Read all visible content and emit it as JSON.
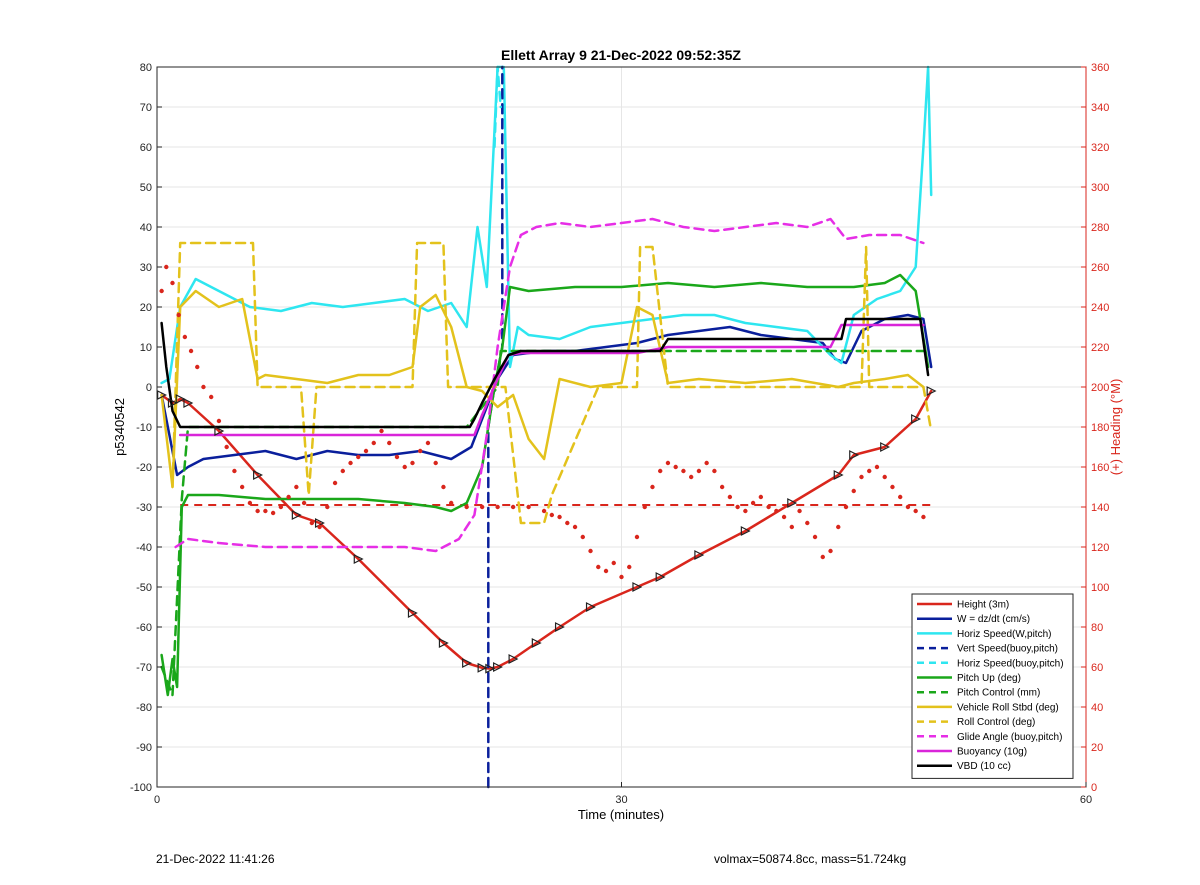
{
  "footer": {
    "timestamp": "21-Dec-2022 11:41:26",
    "info": "volmax=50874.8cc, mass=51.724kg"
  },
  "chart_data": {
    "type": "line",
    "title": "Ellett Array 9 21-Dec-2022 09:52:35Z",
    "xlabel": "Time (minutes)",
    "ylabel": "p5340542",
    "y2label": "(+) Heading (°M)",
    "xlim": [
      0,
      60
    ],
    "ylim": [
      -100,
      80
    ],
    "y2lim": [
      0,
      360
    ],
    "xticks": [
      0,
      30,
      60
    ],
    "yticks": [
      -100,
      -90,
      -80,
      -70,
      -60,
      -50,
      -40,
      -30,
      -20,
      -10,
      0,
      10,
      20,
      30,
      40,
      50,
      60,
      70,
      80
    ],
    "y2ticks": [
      0,
      20,
      40,
      60,
      80,
      100,
      120,
      140,
      160,
      180,
      200,
      220,
      240,
      260,
      280,
      300,
      320,
      340,
      360
    ],
    "grid": true,
    "legend_position": "bottom-right",
    "colors": {
      "height": "#d9261c",
      "w": "#0a1f9c",
      "horiz": "#2ee6f0",
      "pitch": "#1aa71a",
      "roll": "#e3c21c",
      "glide": "#e62ee6",
      "buoy": "#d925d9",
      "vbd": "#000000",
      "heading": "#d9261c"
    },
    "series": [
      {
        "name": "Height (3m)",
        "key": "height",
        "style": "solid",
        "x": [
          0.3,
          1.0,
          1.5,
          2.0,
          4.0,
          6.5,
          9.0,
          10.5,
          13.0,
          16.5,
          18.5,
          20.0,
          21.0,
          21.5,
          22.0,
          23.0,
          24.5,
          26.0,
          28.0,
          31.0,
          32.5,
          35.0,
          38.0,
          41.0,
          44.0,
          45.0,
          47.0,
          49.0,
          50.0
        ],
        "y": [
          -2,
          -4,
          -3,
          -4,
          -11,
          -22,
          -32,
          -34,
          -43,
          -56.5,
          -64,
          -69,
          -70.2,
          -70.4,
          -70,
          -68,
          -64,
          -60,
          -55,
          -50,
          -47.5,
          -42,
          -36,
          -29,
          -22,
          -17,
          -15,
          -8,
          -1
        ]
      },
      {
        "name": "W = dz/dt (cm/s)",
        "key": "w",
        "style": "solid",
        "x": [
          0.3,
          0.8,
          1.3,
          2.0,
          3.0,
          5.0,
          7.0,
          9.0,
          11.0,
          13.0,
          15.0,
          17.0,
          19.0,
          20.3,
          21.0,
          22.0,
          23.0,
          25.0,
          27.0,
          29.0,
          31.0,
          33.0,
          35.0,
          37.0,
          39.0,
          41.0,
          43.0,
          43.8,
          44.5,
          45.5,
          47.0,
          48.5,
          49.5,
          50.0
        ],
        "y": [
          -2,
          -12,
          -22,
          -20,
          -18,
          -17,
          -16,
          -18,
          -16,
          -17,
          -17,
          -16,
          -18,
          -15,
          -8,
          2,
          8,
          9,
          9,
          10,
          11,
          13,
          14,
          15,
          13,
          12,
          11,
          7,
          6,
          14,
          17,
          18,
          17,
          5
        ]
      },
      {
        "name": "Horiz Speed(W,pitch)",
        "key": "horiz",
        "style": "solid",
        "x": [
          0.3,
          0.8,
          1.5,
          2.5,
          4.0,
          6.0,
          8.0,
          10.0,
          12.0,
          14.0,
          16.0,
          17.5,
          19.0,
          20.0,
          20.7,
          21.3,
          22.0,
          22.4,
          22.8,
          23.3,
          24.0,
          26.0,
          28.0,
          30.0,
          32.0,
          34.0,
          36.0,
          38.0,
          40.0,
          42.0,
          43.5,
          44.2,
          45.0,
          46.5,
          48.0,
          49.0,
          49.5,
          49.8,
          50.0
        ],
        "y": [
          1,
          2,
          20,
          27,
          24,
          20,
          19,
          21,
          20,
          21,
          22,
          19,
          21,
          15,
          40,
          25,
          80,
          80,
          5,
          15,
          13,
          12,
          15,
          16,
          17,
          18,
          18,
          16,
          15,
          14,
          8,
          6,
          18,
          22,
          24,
          30,
          60,
          80,
          48
        ]
      },
      {
        "name": "Vert Speed(buoy,pitch)",
        "key": "w",
        "style": "dashed",
        "x": [
          21.4,
          21.4,
          21.8,
          22.3,
          22.3
        ],
        "y": [
          -100,
          -10,
          0,
          10,
          80
        ]
      },
      {
        "name": "Horiz Speed(buoy,pitch)",
        "key": "horiz",
        "style": "dashed",
        "x": [
          21.8,
          22.0,
          22.2
        ],
        "y": [
          60,
          80,
          70
        ]
      },
      {
        "name": "Pitch Up (deg)",
        "key": "pitch",
        "style": "solid",
        "x": [
          0.3,
          0.7,
          1.0,
          1.3,
          1.6,
          2.0,
          4.0,
          7.0,
          10.0,
          13.0,
          16.0,
          18.0,
          19.0,
          20.0,
          21.0,
          21.8,
          22.3,
          22.8,
          24.0,
          27.0,
          30.0,
          33.0,
          36.0,
          39.0,
          42.0,
          45.0,
          47.0,
          48.0,
          49.0,
          49.8
        ],
        "y": [
          -67,
          -77,
          -68,
          -75,
          -30,
          -27,
          -27,
          -28,
          -28,
          -28,
          -29,
          -30,
          -31,
          -29,
          -20,
          0,
          10,
          25,
          24,
          25,
          25,
          26,
          25,
          26,
          25,
          25,
          26,
          28,
          24,
          5
        ]
      },
      {
        "name": "Pitch Control (mm)",
        "key": "pitch",
        "style": "dashed",
        "x": [
          0.3,
          1.0,
          1.6,
          2.0,
          20.0,
          22.0,
          22.2,
          32.5,
          33.0,
          45.0,
          45.5,
          49.5
        ],
        "y": [
          -70,
          -77,
          -28,
          -10,
          -10,
          0,
          9,
          9,
          9,
          9,
          9,
          9
        ]
      },
      {
        "name": "Vehicle Roll Stbd (deg)",
        "key": "roll",
        "style": "solid",
        "x": [
          0.3,
          1.0,
          1.5,
          2.5,
          4.0,
          5.5,
          6.5,
          7.0,
          9.0,
          11.0,
          13.0,
          15.0,
          16.5,
          17.0,
          18.0,
          19.0,
          20.0,
          21.0,
          22.0,
          23.0,
          24.0,
          25.0,
          26.0,
          28.0,
          30.0,
          31.0,
          32.0,
          33.0,
          35.0,
          38.0,
          41.0,
          44.0,
          45.0,
          47.0,
          48.5,
          49.5
        ],
        "y": [
          -2,
          -25,
          20,
          24,
          20,
          22,
          2,
          3,
          2,
          1,
          3,
          3,
          5,
          20,
          23,
          15,
          0,
          -1,
          -5,
          -2,
          -13,
          -18,
          2,
          0,
          1,
          20,
          18,
          1,
          2,
          1,
          2,
          0,
          1,
          2,
          3,
          0
        ]
      },
      {
        "name": "Roll Control (deg)",
        "key": "roll",
        "style": "dashed",
        "x": [
          1.0,
          1.5,
          2.0,
          3.3,
          6.2,
          6.5,
          9.3,
          9.8,
          10.3,
          15.0,
          16.5,
          16.8,
          18.5,
          18.8,
          20.0,
          21.0,
          22.5,
          23.5,
          25.0,
          25.5,
          28.5,
          31.0,
          31.2,
          32.0,
          33.0,
          45.5,
          45.8,
          46.0,
          49.5,
          50.0
        ],
        "y": [
          -25,
          36,
          36,
          36,
          36,
          0,
          0,
          -27,
          0,
          0,
          0,
          36,
          36,
          0,
          0,
          0,
          0,
          -34,
          -34,
          -27,
          0,
          0,
          35,
          35,
          0,
          0,
          35,
          0,
          0,
          -11
        ]
      },
      {
        "name": "Glide Angle (buoy,pitch)",
        "key": "glide",
        "style": "dashed",
        "x": [
          1.2,
          2.0,
          4.0,
          7.0,
          10.0,
          13.0,
          16.0,
          18.0,
          19.5,
          20.5,
          21.3,
          22.0,
          22.8,
          23.5,
          24.5,
          26.0,
          28.0,
          30.0,
          32.0,
          34.0,
          36.0,
          38.0,
          40.0,
          42.0,
          43.5,
          44.5,
          46.0,
          48.0,
          49.5
        ],
        "y": [
          -40,
          -38,
          -39,
          -40,
          -40,
          -40,
          -40,
          -41,
          -38,
          -32,
          -12,
          10,
          30,
          38,
          40,
          41,
          40,
          41,
          42,
          40,
          39,
          40,
          41,
          40,
          42,
          37,
          38,
          38,
          36
        ]
      },
      {
        "name": "Buoyancy (10g)",
        "key": "buoy",
        "style": "solid",
        "x": [
          1.5,
          20.5,
          21.0,
          22.0,
          22.7,
          23.5,
          31.0,
          33.0,
          43.5,
          44.2,
          49.5
        ],
        "y": [
          -12,
          -12,
          -7,
          2,
          8,
          8.5,
          8.5,
          10,
          10,
          15.5,
          15.5
        ]
      },
      {
        "name": "VBD (10 cc)",
        "key": "vbd",
        "style": "solid",
        "x": [
          0.3,
          0.6,
          1.0,
          1.5,
          20.2,
          20.5,
          21.0,
          21.8,
          22.7,
          23.5,
          32.5,
          33.0,
          44.2,
          44.5,
          49.3,
          49.8
        ],
        "y": [
          16,
          5,
          -6,
          -10,
          -10,
          -8,
          -4,
          2,
          8,
          9,
          9,
          12,
          12,
          17,
          17,
          3
        ]
      }
    ],
    "heading_series": {
      "name": "Heading",
      "axis": "right",
      "x": [
        0.3,
        0.6,
        1.0,
        1.4,
        1.8,
        2.2,
        2.6,
        3.0,
        3.5,
        4.0,
        4.5,
        5.0,
        5.5,
        6.0,
        6.5,
        7.0,
        7.5,
        8.0,
        8.5,
        9.0,
        9.5,
        10.0,
        10.5,
        11.0,
        11.5,
        12.0,
        12.5,
        13.0,
        13.5,
        14.0,
        14.5,
        15.0,
        15.5,
        16.0,
        16.5,
        17.0,
        17.5,
        18.0,
        18.5,
        19.0,
        20.0,
        21.0,
        22.0,
        23.0,
        24.0,
        25.0,
        25.5,
        26.0,
        26.5,
        27.0,
        27.5,
        28.0,
        28.5,
        29.0,
        29.5,
        30.0,
        30.5,
        31.0,
        31.5,
        32.0,
        32.5,
        33.0,
        33.5,
        34.0,
        34.5,
        35.0,
        35.5,
        36.0,
        36.5,
        37.0,
        37.5,
        38.0,
        38.5,
        39.0,
        39.5,
        40.0,
        40.5,
        41.0,
        41.5,
        42.0,
        42.5,
        43.0,
        43.5,
        44.0,
        44.5,
        45.0,
        45.5,
        46.0,
        46.5,
        47.0,
        47.5,
        48.0,
        48.5,
        49.0,
        49.5
      ],
      "y": [
        248,
        260,
        252,
        236,
        225,
        218,
        210,
        200,
        195,
        183,
        170,
        158,
        150,
        142,
        138,
        138,
        137,
        140,
        145,
        150,
        142,
        132,
        130,
        140,
        152,
        158,
        162,
        165,
        168,
        172,
        178,
        172,
        165,
        160,
        162,
        168,
        172,
        162,
        150,
        142,
        140,
        140,
        140,
        140,
        140,
        138,
        136,
        135,
        132,
        130,
        125,
        118,
        110,
        108,
        112,
        105,
        110,
        125,
        140,
        150,
        158,
        162,
        160,
        158,
        155,
        158,
        162,
        158,
        150,
        145,
        140,
        138,
        142,
        145,
        140,
        138,
        135,
        130,
        138,
        132,
        125,
        115,
        118,
        130,
        140,
        148,
        155,
        158,
        160,
        155,
        150,
        145,
        140,
        138,
        135
      ],
      "heading_target": 141
    }
  }
}
